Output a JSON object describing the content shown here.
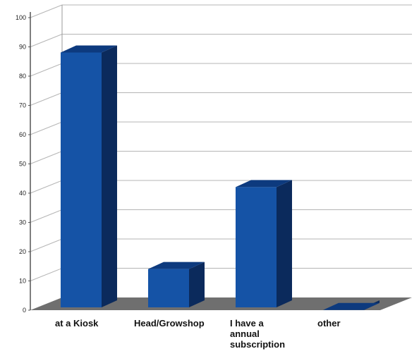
{
  "chart_data": {
    "type": "bar",
    "categories": [
      "at a Kiosk",
      "Head/Growshop",
      "I have a annual subscription",
      "other"
    ],
    "category_lines": [
      [
        "at a Kiosk"
      ],
      [
        "Head/Growshop"
      ],
      [
        "I have a",
        "annual",
        "subscription"
      ],
      [
        "other"
      ]
    ],
    "values": [
      90,
      16,
      44,
      2
    ],
    "ylim": [
      0,
      100
    ],
    "yticks": [
      "0",
      "10",
      "20",
      "30",
      "40",
      "50",
      "60",
      "70",
      "80",
      "90",
      "100"
    ],
    "grid": true,
    "style": "3d",
    "colors": {
      "bar_front": "#1553a6",
      "bar_top": "#0d3a7e",
      "bar_side": "#0b2a5c",
      "floor": "#6f6f6f",
      "grid": "#b5b5b5"
    }
  }
}
